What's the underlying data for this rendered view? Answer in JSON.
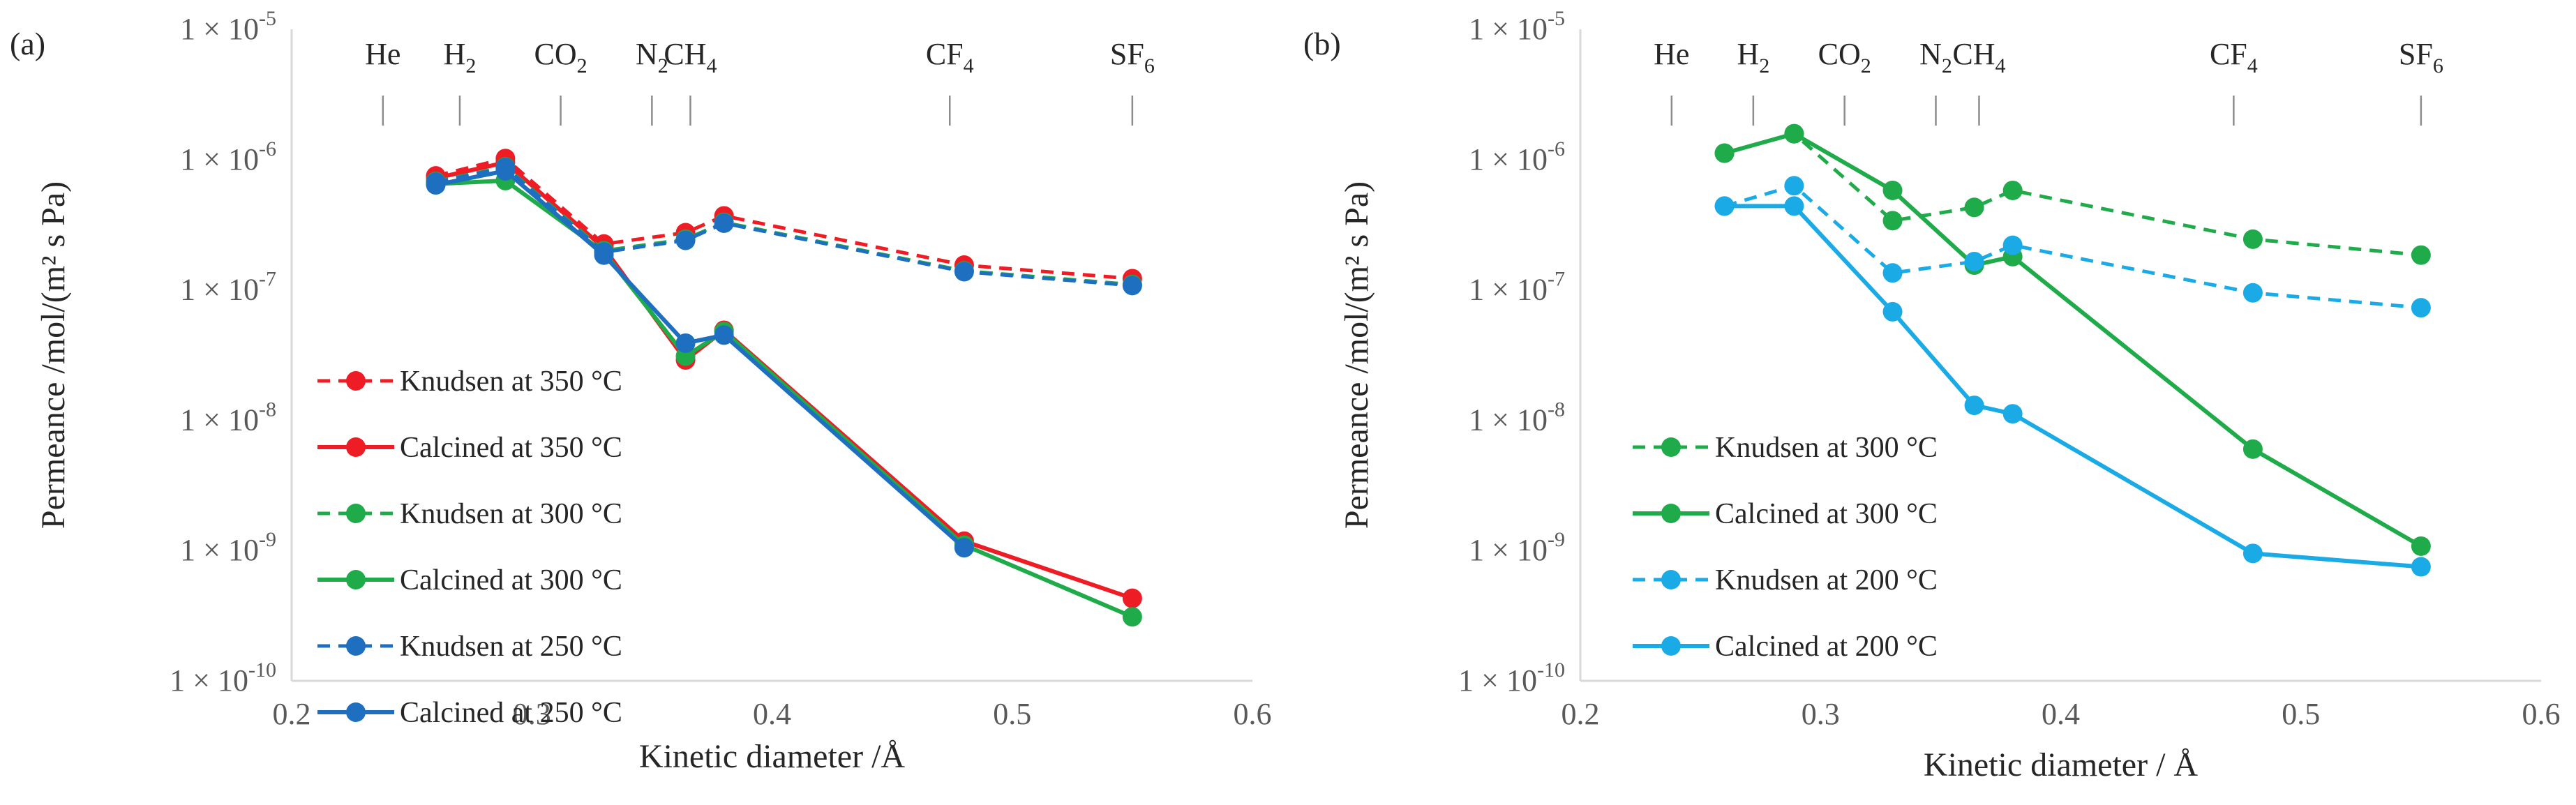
{
  "chart_data": [
    {
      "type": "line",
      "panel_label": "(a)",
      "xlabel": "Kinetic diameter /Å",
      "ylabel": "Permeance /mol/(m² s Pa)",
      "xlim": [
        0.2,
        0.6
      ],
      "xticks": [
        0.2,
        0.3,
        0.4,
        0.5,
        0.6
      ],
      "xtick_labels": [
        "0.2",
        "0.3",
        "0.4",
        "0.5",
        "0.6"
      ],
      "ylim": [
        1e-10,
        1e-05
      ],
      "yscale": "log",
      "ytick_exponents": [
        -10,
        -9,
        -8,
        -7,
        -6,
        -5
      ],
      "ytick_prefix": "1 × 10",
      "legend_position": "left",
      "gases": [
        {
          "label": "He",
          "sub": "",
          "x": 0.238
        },
        {
          "label": "H",
          "sub": "2",
          "x": 0.27
        },
        {
          "label": "CO",
          "sub": "2",
          "x": 0.312
        },
        {
          "label": "N",
          "sub": "2",
          "x": 0.35
        },
        {
          "label": "CH",
          "sub": "4",
          "x": 0.366
        },
        {
          "label": "CF",
          "sub": "4",
          "x": 0.474
        },
        {
          "label": "SF",
          "sub": "6",
          "x": 0.55
        }
      ],
      "series": [
        {
          "name": "Knudsen at 350 °C",
          "style": "dashed",
          "color": "#ee1c24",
          "x": [
            0.26,
            0.289,
            0.33,
            0.364,
            0.38,
            0.48,
            0.55
          ],
          "y": [
            7.5e-07,
            1.02e-06,
            2.25e-07,
            2.75e-07,
            3.7e-07,
            1.55e-07,
            1.22e-07
          ]
        },
        {
          "name": "Calcined at 350 °C",
          "style": "solid",
          "color": "#ee1c24",
          "x": [
            0.26,
            0.289,
            0.33,
            0.364,
            0.38,
            0.48,
            0.55
          ],
          "y": [
            7.2e-07,
            9.5e-07,
            2.1e-07,
            2.9e-08,
            4.9e-08,
            1.18e-09,
            4.3e-10
          ]
        },
        {
          "name": "Knudsen at 300 °C",
          "style": "dashed",
          "color": "#1fab4a",
          "x": [
            0.26,
            0.289,
            0.33,
            0.364,
            0.38,
            0.48,
            0.55
          ],
          "y": [
            6.8e-07,
            8.8e-07,
            2e-07,
            2.45e-07,
            3.3e-07,
            1.4e-07,
            1.1e-07
          ]
        },
        {
          "name": "Calcined at 300 °C",
          "style": "solid",
          "color": "#1fab4a",
          "x": [
            0.26,
            0.289,
            0.33,
            0.364,
            0.38,
            0.48,
            0.55
          ],
          "y": [
            6.5e-07,
            6.9e-07,
            1.95e-07,
            3.1e-08,
            4.8e-08,
            1.1e-09,
            3.1e-10
          ]
        },
        {
          "name": "Knudsen at 250 °C",
          "style": "dashed",
          "color": "#1f6fc0",
          "x": [
            0.26,
            0.289,
            0.33,
            0.364,
            0.38,
            0.48,
            0.55
          ],
          "y": [
            6.7e-07,
            8.7e-07,
            1.95e-07,
            2.4e-07,
            3.25e-07,
            1.38e-07,
            1.08e-07
          ]
        },
        {
          "name": "Calcined at 250 °C",
          "style": "solid",
          "color": "#1f6fc0",
          "x": [
            0.26,
            0.289,
            0.33,
            0.364,
            0.38,
            0.48,
            0.55
          ],
          "y": [
            6.4e-07,
            8.2e-07,
            1.85e-07,
            3.9e-08,
            4.5e-08,
            1.05e-09,
            null
          ]
        }
      ]
    },
    {
      "type": "line",
      "panel_label": "(b)",
      "xlabel": "Kinetic diameter / Å",
      "ylabel": "Permeance /mol/(m² s Pa)",
      "xlim": [
        0.2,
        0.6
      ],
      "xticks": [
        0.2,
        0.3,
        0.4,
        0.5,
        0.6
      ],
      "xtick_labels": [
        "0.2",
        "0.3",
        "0.4",
        "0.5",
        "0.6"
      ],
      "ylim": [
        1e-10,
        1e-05
      ],
      "yscale": "log",
      "ytick_exponents": [
        -10,
        -9,
        -8,
        -7,
        -6,
        -5
      ],
      "ytick_prefix": "1 × 10",
      "legend_position": "lower-left",
      "gases": [
        {
          "label": "He",
          "sub": "",
          "x": 0.238
        },
        {
          "label": "H",
          "sub": "2",
          "x": 0.272
        },
        {
          "label": "CO",
          "sub": "2",
          "x": 0.31
        },
        {
          "label": "N",
          "sub": "2",
          "x": 0.348
        },
        {
          "label": "CH",
          "sub": "4",
          "x": 0.366
        },
        {
          "label": "CF",
          "sub": "4",
          "x": 0.472
        },
        {
          "label": "SF",
          "sub": "6",
          "x": 0.55
        }
      ],
      "series": [
        {
          "name": "Knudsen at 300 °C",
          "style": "dashed",
          "color": "#1fab4a",
          "x": [
            0.26,
            0.289,
            0.33,
            0.364,
            0.38,
            0.48,
            0.55
          ],
          "y": [
            1.12e-06,
            1.58e-06,
            3.4e-07,
            4.3e-07,
            5.8e-07,
            2.45e-07,
            1.85e-07
          ]
        },
        {
          "name": "Calcined at 300 °C",
          "style": "solid",
          "color": "#1fab4a",
          "x": [
            0.26,
            0.289,
            0.33,
            0.364,
            0.38,
            0.48,
            0.55
          ],
          "y": [
            1.12e-06,
            1.58e-06,
            5.8e-07,
            1.55e-07,
            1.8e-07,
            6e-09,
            1.08e-09
          ]
        },
        {
          "name": "Knudsen at 200 °C",
          "style": "dashed",
          "color": "#1aabe6",
          "x": [
            0.26,
            0.289,
            0.33,
            0.364,
            0.38,
            0.48,
            0.55
          ],
          "y": [
            4.4e-07,
            6.3e-07,
            1.35e-07,
            1.65e-07,
            2.2e-07,
            9.5e-08,
            7.3e-08
          ]
        },
        {
          "name": "Calcined at 200 °C",
          "style": "solid",
          "color": "#1aabe6",
          "x": [
            0.26,
            0.289,
            0.33,
            0.364,
            0.38,
            0.48,
            0.55
          ],
          "y": [
            4.4e-07,
            4.4e-07,
            6.8e-08,
            1.3e-08,
            1.12e-08,
            9.5e-10,
            7.5e-10
          ]
        }
      ]
    }
  ]
}
